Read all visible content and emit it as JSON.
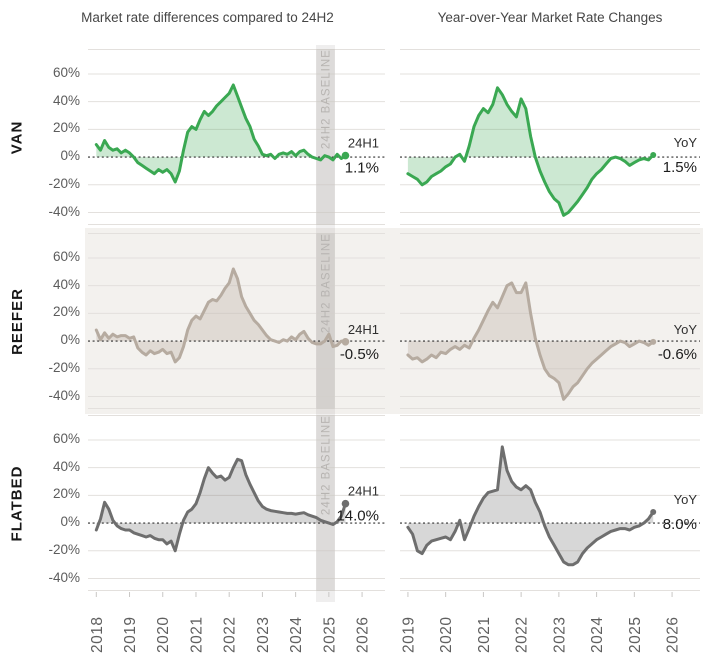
{
  "header": {
    "left_title": "Market rate differences compared to 24H2",
    "right_title": "Year-over-Year Market Rate Changes"
  },
  "rows": [
    {
      "label": "VAN"
    },
    {
      "label": "REEFER"
    },
    {
      "label": "FLATBED"
    }
  ],
  "axis": {
    "y_tick_labels": [
      "60%",
      "40%",
      "20%",
      "0%",
      "-20%",
      "-40%"
    ],
    "y_tick_values": [
      60,
      40,
      20,
      0,
      -20,
      -40
    ],
    "left_x_ticks": [
      "2018",
      "2019",
      "2020",
      "2021",
      "2022",
      "2023",
      "2024",
      "2025",
      "2026"
    ],
    "right_x_ticks": [
      "2019",
      "2020",
      "2021",
      "2022",
      "2023",
      "2024",
      "2025",
      "2026"
    ]
  },
  "baseline_band": {
    "label": "24H2 BASELINE",
    "x_start": 2024.62,
    "x_end": 2025.18
  },
  "colors": {
    "van": "#3aa852",
    "van_fill": "rgba(58,168,82,0.26)",
    "reefer": "#b6aba0",
    "reefer_fill": "rgba(182,171,160,0.32)",
    "flatbed": "#6e6e6e",
    "flatbed_fill": "rgba(110,110,110,0.28)",
    "reefer_row_bg": "#f3f1ee",
    "grid": "#e3e0dd",
    "zero_line": "#2f2f2f",
    "band_fill": "rgba(150,146,142,0.20)"
  },
  "chart_data": [
    {
      "row": "VAN",
      "col": "left",
      "type": "area",
      "title": "Market rate differences compared to 24H2",
      "x_start": 2018.0,
      "x_step": 0.125,
      "x_end": 2025.5,
      "ylim": [
        -49,
        78
      ],
      "y_unit": "%",
      "annotation": {
        "label": "24H1",
        "value": "1.1%"
      },
      "values": [
        9,
        5,
        12,
        7,
        5,
        6,
        3,
        5,
        3,
        0,
        -4,
        -6,
        -8,
        -10,
        -12,
        -9,
        -11,
        -9,
        -12,
        -18,
        -10,
        5,
        18,
        22,
        20,
        27,
        33,
        30,
        33,
        37,
        40,
        43,
        46,
        52,
        44,
        36,
        28,
        22,
        13,
        8,
        2,
        1,
        2,
        -1,
        2,
        3,
        2,
        4,
        1,
        4,
        5,
        2,
        0,
        -1,
        -2,
        1,
        0,
        -2,
        2,
        -1,
        1.1
      ]
    },
    {
      "row": "VAN",
      "col": "right",
      "type": "area",
      "title": "Year-over-Year Market Rate Changes",
      "x_start": 2019.0,
      "x_step": 0.125,
      "x_end": 2025.5,
      "ylim": [
        -49,
        78
      ],
      "y_unit": "%",
      "annotation": {
        "label": "YoY",
        "value": "1.5%"
      },
      "values": [
        -12,
        -14,
        -16,
        -20,
        -18,
        -14,
        -12,
        -10,
        -7,
        -5,
        0,
        2,
        -3,
        8,
        22,
        30,
        35,
        32,
        38,
        50,
        45,
        38,
        33,
        29,
        42,
        35,
        15,
        0,
        -10,
        -18,
        -25,
        -30,
        -33,
        -42,
        -40,
        -36,
        -32,
        -27,
        -22,
        -16,
        -12,
        -9,
        -5,
        -1,
        0,
        -1,
        -3,
        -6,
        -4,
        -2,
        -1,
        -2,
        1.5
      ]
    },
    {
      "row": "REEFER",
      "col": "left",
      "type": "area",
      "title": "Market rate differences compared to 24H2",
      "x_start": 2018.0,
      "x_step": 0.125,
      "x_end": 2025.5,
      "ylim": [
        -49,
        78
      ],
      "y_unit": "%",
      "annotation": {
        "label": "24H1",
        "value": "-0.5%"
      },
      "values": [
        8,
        1,
        6,
        2,
        5,
        3,
        4,
        4,
        2,
        3,
        -5,
        -8,
        -10,
        -7,
        -9,
        -8,
        -6,
        -9,
        -8,
        -15,
        -12,
        -4,
        8,
        15,
        18,
        16,
        22,
        28,
        30,
        29,
        33,
        38,
        42,
        52,
        45,
        32,
        25,
        20,
        15,
        12,
        8,
        4,
        1,
        0,
        -1,
        1,
        0,
        3,
        1,
        5,
        7,
        2,
        -1,
        -2,
        -2,
        0,
        5,
        -4,
        -3,
        0,
        -0.5
      ]
    },
    {
      "row": "REEFER",
      "col": "right",
      "type": "area",
      "title": "Year-over-Year Market Rate Changes",
      "x_start": 2019.0,
      "x_step": 0.125,
      "x_end": 2025.5,
      "ylim": [
        -49,
        78
      ],
      "y_unit": "%",
      "annotation": {
        "label": "YoY",
        "value": "-0.6%"
      },
      "values": [
        -10,
        -13,
        -12,
        -15,
        -13,
        -10,
        -12,
        -8,
        -9,
        -6,
        -4,
        -6,
        -3,
        -5,
        2,
        8,
        15,
        22,
        28,
        24,
        32,
        40,
        42,
        35,
        35,
        42,
        20,
        2,
        -10,
        -20,
        -25,
        -27,
        -30,
        -42,
        -38,
        -33,
        -30,
        -25,
        -20,
        -16,
        -13,
        -10,
        -7,
        -4,
        -2,
        0,
        -1,
        -4,
        -2,
        0,
        -1,
        -3,
        -0.6
      ]
    },
    {
      "row": "FLATBED",
      "col": "left",
      "type": "area",
      "title": "Market rate differences compared to 24H2",
      "x_start": 2018.0,
      "x_step": 0.125,
      "x_end": 2025.5,
      "ylim": [
        -49,
        78
      ],
      "y_unit": "%",
      "annotation": {
        "label": "24H1",
        "value": "14.0%"
      },
      "values": [
        -5,
        3,
        15,
        10,
        2,
        -2,
        -4,
        -5,
        -5,
        -7,
        -8,
        -9,
        -10,
        -9,
        -11,
        -12,
        -12,
        -15,
        -13,
        -20,
        -8,
        2,
        8,
        10,
        14,
        22,
        32,
        40,
        36,
        33,
        34,
        31,
        33,
        40,
        46,
        45,
        35,
        28,
        22,
        16,
        12,
        10,
        9,
        8.5,
        8,
        7.5,
        7,
        7,
        6.5,
        7,
        7.5,
        6,
        5,
        4,
        2,
        1,
        0,
        -1,
        1,
        5,
        14
      ]
    },
    {
      "row": "FLATBED",
      "col": "right",
      "type": "area",
      "title": "Year-over-Year Market Rate Changes",
      "x_start": 2019.0,
      "x_step": 0.125,
      "x_end": 2025.5,
      "ylim": [
        -49,
        78
      ],
      "y_unit": "%",
      "annotation": {
        "label": "YoY",
        "value": "8.0%"
      },
      "values": [
        -3,
        -8,
        -20,
        -22,
        -16,
        -13,
        -12,
        -11,
        -10,
        -12,
        -6,
        2,
        -12,
        -4,
        5,
        12,
        18,
        22,
        23,
        24,
        55,
        38,
        30,
        26,
        24,
        27,
        24,
        15,
        8,
        -2,
        -10,
        -16,
        -22,
        -28,
        -30,
        -30,
        -28,
        -22,
        -18,
        -15,
        -12,
        -10,
        -8,
        -6,
        -5,
        -4,
        -4,
        -5,
        -3,
        -2,
        0,
        3,
        8
      ]
    }
  ]
}
